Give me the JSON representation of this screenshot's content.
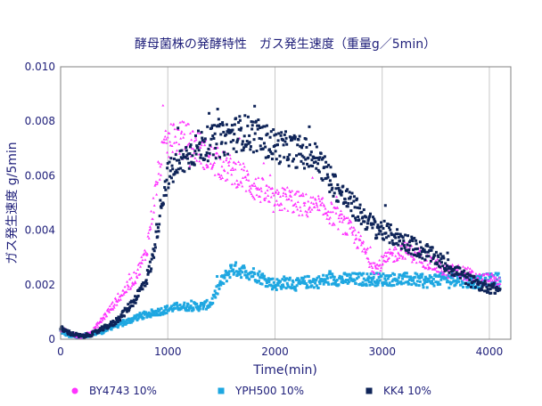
{
  "chart_data": {
    "type": "scatter",
    "title": "酵母菌株の発酵特性　ガス発生速度（重量g／5min）",
    "xlabel": "Time(min)",
    "ylabel": "ガス発生速度 g/5min",
    "xlim": [
      0,
      4200
    ],
    "ylim": [
      0,
      0.01
    ],
    "x_ticks": [
      0,
      1000,
      2000,
      3000,
      4000
    ],
    "y_ticks": [
      0,
      0.002,
      0.004,
      0.006,
      0.008,
      0.01
    ],
    "x_tick_labels": [
      "0",
      "1000",
      "2000",
      "3000",
      "4000"
    ],
    "y_tick_labels": [
      "0",
      "0.002",
      "0.004",
      "0.006",
      "0.008",
      "0.010"
    ],
    "grid": "vertical",
    "legend_position": "bottom",
    "sample_step_min": 5,
    "series": [
      {
        "name": "BY4743 10%",
        "color": "#ff33ff",
        "marker": "triangle",
        "legend_marker": "circle",
        "x_end": 4100,
        "profile": [
          [
            0,
            0.0004
          ],
          [
            100,
            0.0002
          ],
          [
            200,
            0.0001
          ],
          [
            300,
            0.0003
          ],
          [
            400,
            0.0008
          ],
          [
            500,
            0.0013
          ],
          [
            600,
            0.0018
          ],
          [
            700,
            0.0023
          ],
          [
            800,
            0.0032
          ],
          [
            850,
            0.0045
          ],
          [
            900,
            0.0058
          ],
          [
            950,
            0.0068
          ],
          [
            1000,
            0.0072
          ],
          [
            1100,
            0.0074
          ],
          [
            1200,
            0.0073
          ],
          [
            1300,
            0.007
          ],
          [
            1400,
            0.0066
          ],
          [
            1500,
            0.0064
          ],
          [
            1600,
            0.0062
          ],
          [
            1700,
            0.006
          ],
          [
            1800,
            0.0056
          ],
          [
            1900,
            0.0054
          ],
          [
            2000,
            0.005
          ],
          [
            2100,
            0.0052
          ],
          [
            2200,
            0.005
          ],
          [
            2300,
            0.0049
          ],
          [
            2400,
            0.0048
          ],
          [
            2500,
            0.0047
          ],
          [
            2600,
            0.0044
          ],
          [
            2700,
            0.004
          ],
          [
            2800,
            0.0035
          ],
          [
            2900,
            0.0028
          ],
          [
            2950,
            0.0026
          ],
          [
            3000,
            0.0028
          ],
          [
            3100,
            0.0031
          ],
          [
            3200,
            0.0033
          ],
          [
            3300,
            0.0031
          ],
          [
            3400,
            0.0029
          ],
          [
            3500,
            0.0027
          ],
          [
            3600,
            0.0025
          ],
          [
            3700,
            0.0025
          ],
          [
            3800,
            0.0024
          ],
          [
            3900,
            0.0022
          ],
          [
            4000,
            0.0022
          ],
          [
            4100,
            0.0021
          ]
        ]
      },
      {
        "name": "YPH500 10%",
        "color": "#1ea7e1",
        "marker": "square",
        "legend_marker": "square",
        "x_end": 4100,
        "profile": [
          [
            0,
            0.0003
          ],
          [
            100,
            0.0001
          ],
          [
            200,
            0.0001
          ],
          [
            300,
            0.0002
          ],
          [
            400,
            0.0003
          ],
          [
            500,
            0.0005
          ],
          [
            600,
            0.0006
          ],
          [
            700,
            0.0008
          ],
          [
            800,
            0.0009
          ],
          [
            900,
            0.001
          ],
          [
            1000,
            0.0011
          ],
          [
            1100,
            0.0012
          ],
          [
            1200,
            0.0012
          ],
          [
            1300,
            0.0012
          ],
          [
            1400,
            0.0013
          ],
          [
            1450,
            0.0017
          ],
          [
            1500,
            0.0021
          ],
          [
            1600,
            0.0026
          ],
          [
            1700,
            0.0025
          ],
          [
            1800,
            0.0024
          ],
          [
            1900,
            0.0022
          ],
          [
            2000,
            0.002
          ],
          [
            2100,
            0.0021
          ],
          [
            2200,
            0.002
          ],
          [
            2300,
            0.0021
          ],
          [
            2400,
            0.0021
          ],
          [
            2500,
            0.0022
          ],
          [
            2600,
            0.0022
          ],
          [
            2700,
            0.0022
          ],
          [
            2800,
            0.0022
          ],
          [
            2900,
            0.0022
          ],
          [
            3000,
            0.0022
          ],
          [
            3100,
            0.0022
          ],
          [
            3200,
            0.0022
          ],
          [
            3300,
            0.0022
          ],
          [
            3400,
            0.0021
          ],
          [
            3500,
            0.0022
          ],
          [
            3600,
            0.0022
          ],
          [
            3700,
            0.0022
          ],
          [
            3800,
            0.0021
          ],
          [
            3900,
            0.0021
          ],
          [
            4000,
            0.0022
          ],
          [
            4100,
            0.0022
          ]
        ]
      },
      {
        "name": "KK4 10%",
        "color": "#0f2458",
        "marker": "square",
        "legend_marker": "square",
        "x_end": 4100,
        "profile": [
          [
            0,
            0.0004
          ],
          [
            100,
            0.0002
          ],
          [
            200,
            0.0001
          ],
          [
            300,
            0.0002
          ],
          [
            400,
            0.0004
          ],
          [
            500,
            0.0006
          ],
          [
            600,
            0.001
          ],
          [
            700,
            0.0015
          ],
          [
            800,
            0.0022
          ],
          [
            850,
            0.0028
          ],
          [
            900,
            0.004
          ],
          [
            950,
            0.0052
          ],
          [
            1000,
            0.006
          ],
          [
            1100,
            0.0064
          ],
          [
            1200,
            0.0068
          ],
          [
            1300,
            0.0071
          ],
          [
            1400,
            0.0072
          ],
          [
            1500,
            0.0073
          ],
          [
            1600,
            0.0075
          ],
          [
            1700,
            0.0076
          ],
          [
            1800,
            0.0075
          ],
          [
            1900,
            0.0073
          ],
          [
            2000,
            0.0071
          ],
          [
            2100,
            0.007
          ],
          [
            2200,
            0.0069
          ],
          [
            2300,
            0.0068
          ],
          [
            2400,
            0.0066
          ],
          [
            2500,
            0.006
          ],
          [
            2600,
            0.0054
          ],
          [
            2700,
            0.005
          ],
          [
            2800,
            0.0046
          ],
          [
            2900,
            0.0042
          ],
          [
            3000,
            0.004
          ],
          [
            3100,
            0.0038
          ],
          [
            3200,
            0.0036
          ],
          [
            3300,
            0.0034
          ],
          [
            3400,
            0.0032
          ],
          [
            3500,
            0.003
          ],
          [
            3600,
            0.0027
          ],
          [
            3700,
            0.0025
          ],
          [
            3800,
            0.0022
          ],
          [
            3900,
            0.002
          ],
          [
            4000,
            0.0019
          ],
          [
            4100,
            0.0018
          ]
        ]
      }
    ]
  }
}
